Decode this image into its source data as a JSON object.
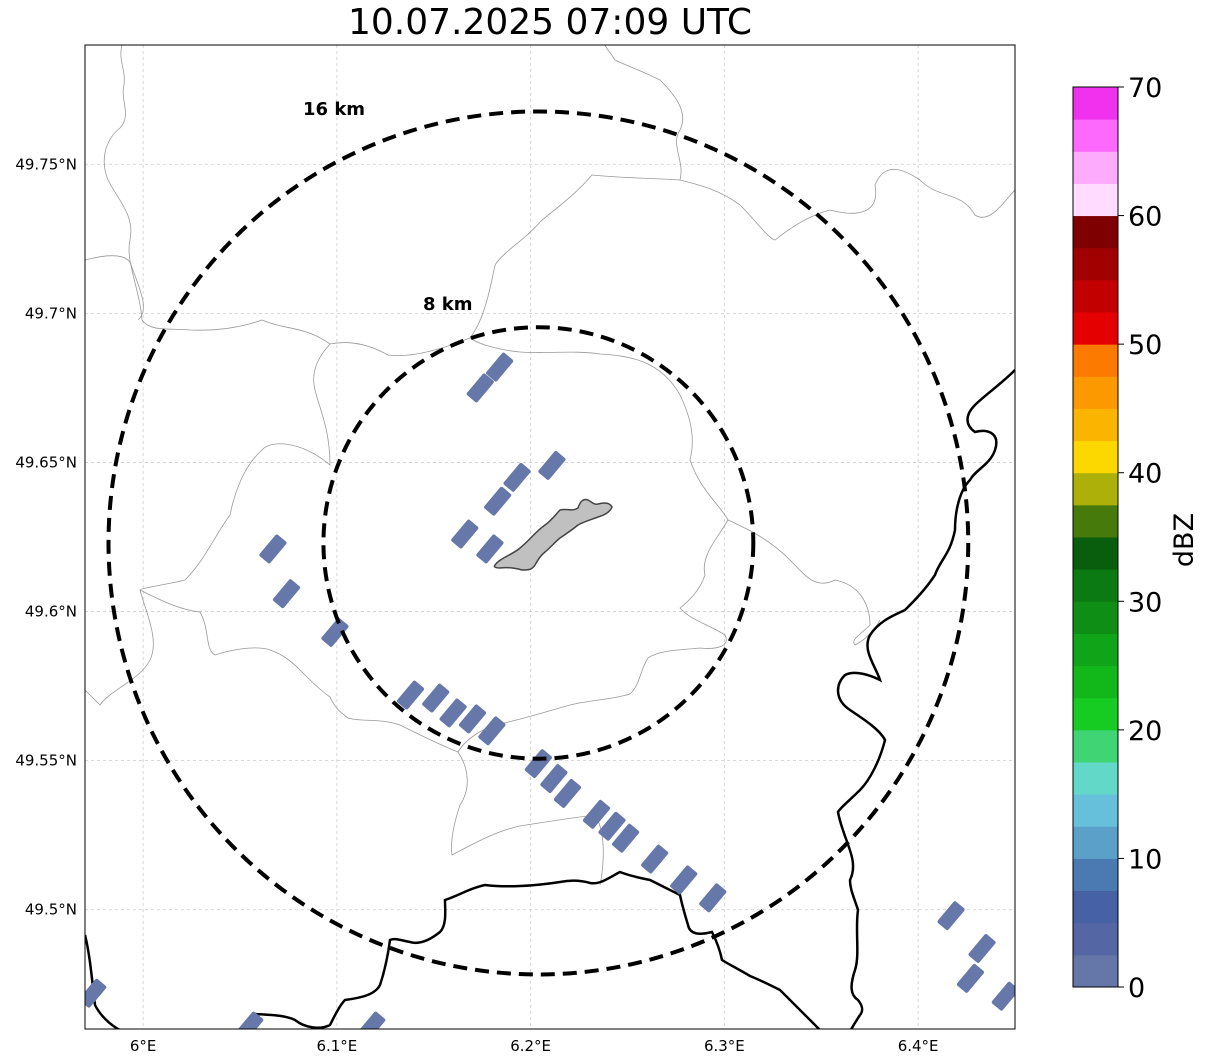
{
  "title": "10.07.2025 07:09 UTC",
  "map": {
    "lon_range": [
      5.97,
      6.45
    ],
    "lat_range": [
      49.46,
      49.79
    ],
    "center": {
      "lon": 6.204,
      "lat": 49.623
    },
    "longitude_ticks": [
      {
        "value": 6.0,
        "label": "6°E"
      },
      {
        "value": 6.1,
        "label": "6.1°E"
      },
      {
        "value": 6.2,
        "label": "6.2°E"
      },
      {
        "value": 6.3,
        "label": "6.3°E"
      },
      {
        "value": 6.4,
        "label": "6.4°E"
      }
    ],
    "latitude_ticks": [
      {
        "value": 49.5,
        "label": "49.5°N"
      },
      {
        "value": 49.55,
        "label": "49.55°N"
      },
      {
        "value": 49.6,
        "label": "49.6°N"
      },
      {
        "value": 49.65,
        "label": "49.65°N"
      },
      {
        "value": 49.7,
        "label": "49.7°N"
      },
      {
        "value": 49.75,
        "label": "49.75°N"
      }
    ],
    "range_rings": [
      {
        "km": 8,
        "label": "8 km"
      },
      {
        "km": 16,
        "label": "16 km"
      }
    ],
    "colors": {
      "echo": "#6677aa",
      "city_fill": "#c0c0c0",
      "border": "#000000",
      "admin_line": "#999999",
      "grid": "#cccccc"
    }
  },
  "colorbar": {
    "label": "dBZ",
    "min": 0,
    "max": 70,
    "ticks": [
      {
        "value": 0,
        "label": "0"
      },
      {
        "value": 10,
        "label": "10"
      },
      {
        "value": 20,
        "label": "20"
      },
      {
        "value": 30,
        "label": "30"
      },
      {
        "value": 40,
        "label": "40"
      },
      {
        "value": 50,
        "label": "50"
      },
      {
        "value": 60,
        "label": "60"
      },
      {
        "value": 70,
        "label": "70"
      }
    ],
    "colors": [
      "#6577a8",
      "#5566a5",
      "#4661a4",
      "#4b7ab2",
      "#5aa0c8",
      "#66c0dc",
      "#62d8c8",
      "#3fd474",
      "#16cc22",
      "#12b81a",
      "#10a418",
      "#0f8e15",
      "#0b7a12",
      "#085e0d",
      "#467a0a",
      "#acb008",
      "#fcd800",
      "#fbb400",
      "#fc9800",
      "#fc7a00",
      "#e40000",
      "#c20000",
      "#a00000",
      "#7e0000",
      "#ffdcff",
      "#fdacfd",
      "#fd68fd",
      "#f032ef"
    ]
  },
  "chart_data": {
    "type": "heatmap",
    "title": "10.07.2025 07:09 UTC",
    "xlabel": "",
    "ylabel": "",
    "xlim": [
      5.97,
      6.45
    ],
    "ylim": [
      49.46,
      49.79
    ],
    "colorbar_label": "dBZ",
    "colorbar_range": [
      0,
      70
    ],
    "echo_cells_note": "",
    "echo_cells": [
      {
        "lon": 6.174,
        "lat": 49.675,
        "dbz": 1
      },
      {
        "lon": 6.184,
        "lat": 49.682,
        "dbz": 1
      },
      {
        "lon": 6.211,
        "lat": 49.649,
        "dbz": 1
      },
      {
        "lon": 6.193,
        "lat": 49.645,
        "dbz": 1
      },
      {
        "lon": 6.183,
        "lat": 49.637,
        "dbz": 1
      },
      {
        "lon": 6.166,
        "lat": 49.626,
        "dbz": 1
      },
      {
        "lon": 6.179,
        "lat": 49.621,
        "dbz": 1
      },
      {
        "lon": 6.067,
        "lat": 49.621,
        "dbz": 1
      },
      {
        "lon": 6.074,
        "lat": 49.606,
        "dbz": 1
      },
      {
        "lon": 6.099,
        "lat": 49.593,
        "dbz": 1
      },
      {
        "lon": 6.138,
        "lat": 49.572,
        "dbz": 1
      },
      {
        "lon": 6.151,
        "lat": 49.571,
        "dbz": 1
      },
      {
        "lon": 6.16,
        "lat": 49.566,
        "dbz": 1
      },
      {
        "lon": 6.17,
        "lat": 49.564,
        "dbz": 1
      },
      {
        "lon": 6.18,
        "lat": 49.56,
        "dbz": 1
      },
      {
        "lon": 6.204,
        "lat": 49.549,
        "dbz": 1
      },
      {
        "lon": 6.212,
        "lat": 49.544,
        "dbz": 1
      },
      {
        "lon": 6.219,
        "lat": 49.539,
        "dbz": 1
      },
      {
        "lon": 6.234,
        "lat": 49.532,
        "dbz": 1
      },
      {
        "lon": 6.242,
        "lat": 49.528,
        "dbz": 1
      },
      {
        "lon": 6.249,
        "lat": 49.524,
        "dbz": 1
      },
      {
        "lon": 6.264,
        "lat": 49.517,
        "dbz": 1
      },
      {
        "lon": 6.279,
        "lat": 49.51,
        "dbz": 1
      },
      {
        "lon": 6.294,
        "lat": 49.504,
        "dbz": 1
      },
      {
        "lon": 6.417,
        "lat": 49.498,
        "dbz": 1
      },
      {
        "lon": 6.433,
        "lat": 49.487,
        "dbz": 1
      },
      {
        "lon": 6.427,
        "lat": 49.477,
        "dbz": 1
      },
      {
        "lon": 6.445,
        "lat": 49.471,
        "dbz": 1
      },
      {
        "lon": 6.055,
        "lat": 49.461,
        "dbz": 1
      },
      {
        "lon": 6.118,
        "lat": 49.461,
        "dbz": 1
      },
      {
        "lon": 5.974,
        "lat": 49.472,
        "dbz": 1
      }
    ]
  }
}
